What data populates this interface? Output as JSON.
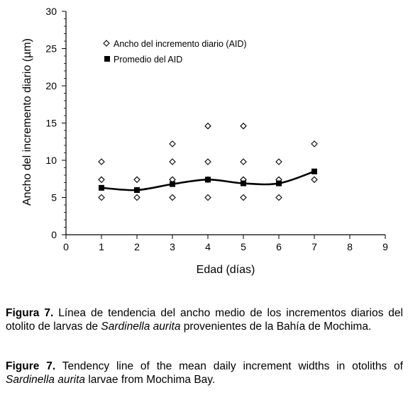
{
  "chart_data": {
    "type": "scatter",
    "xlabel": "Edad (días)",
    "ylabel": "Ancho del incremento diario (µm)",
    "xlim": [
      0,
      9
    ],
    "ylim": [
      0,
      30
    ],
    "xticks": [
      0,
      1,
      2,
      3,
      4,
      5,
      6,
      7,
      8,
      9
    ],
    "yticks": [
      0,
      5,
      10,
      15,
      20,
      25,
      30
    ],
    "grid": false,
    "legend_position": "top-left",
    "series": [
      {
        "name": "Ancho del incremento diario (AID)",
        "marker": "diamond-open",
        "points": [
          [
            1,
            5.0
          ],
          [
            1,
            7.4
          ],
          [
            1,
            9.8
          ],
          [
            2,
            5.0
          ],
          [
            2,
            7.4
          ],
          [
            3,
            5.0
          ],
          [
            3,
            7.4
          ],
          [
            3,
            9.8
          ],
          [
            3,
            12.2
          ],
          [
            4,
            5.0
          ],
          [
            4,
            7.4
          ],
          [
            4,
            9.8
          ],
          [
            4,
            14.6
          ],
          [
            5,
            5.0
          ],
          [
            5,
            7.4
          ],
          [
            5,
            9.8
          ],
          [
            5,
            14.6
          ],
          [
            6,
            5.0
          ],
          [
            6,
            7.4
          ],
          [
            6,
            9.8
          ],
          [
            7,
            7.4
          ],
          [
            7,
            12.2
          ]
        ]
      },
      {
        "name": "Promedio del AID",
        "marker": "square-filled",
        "points": [
          [
            1,
            6.3
          ],
          [
            2,
            6.0
          ],
          [
            3,
            6.8
          ],
          [
            4,
            7.4
          ],
          [
            5,
            6.9
          ],
          [
            6,
            6.9
          ],
          [
            7,
            8.5
          ]
        ],
        "trendline": true
      }
    ],
    "colors": {
      "marker": "#000000",
      "line": "#000000"
    }
  },
  "captions": {
    "es": {
      "label": "Figura 7.",
      "text_before": " Línea de tendencia del ancho medio de los incrementos diarios del otolito de larvas de ",
      "species": "Sardinella aurita",
      "text_after": " provenientes de la Bahía de Mochima."
    },
    "en": {
      "label": "Figure 7.",
      "text_before": " Tendency line of the mean daily increment widths in otoliths of ",
      "species": "Sardinella aurita",
      "text_after": " larvae from Mochima Bay."
    }
  }
}
